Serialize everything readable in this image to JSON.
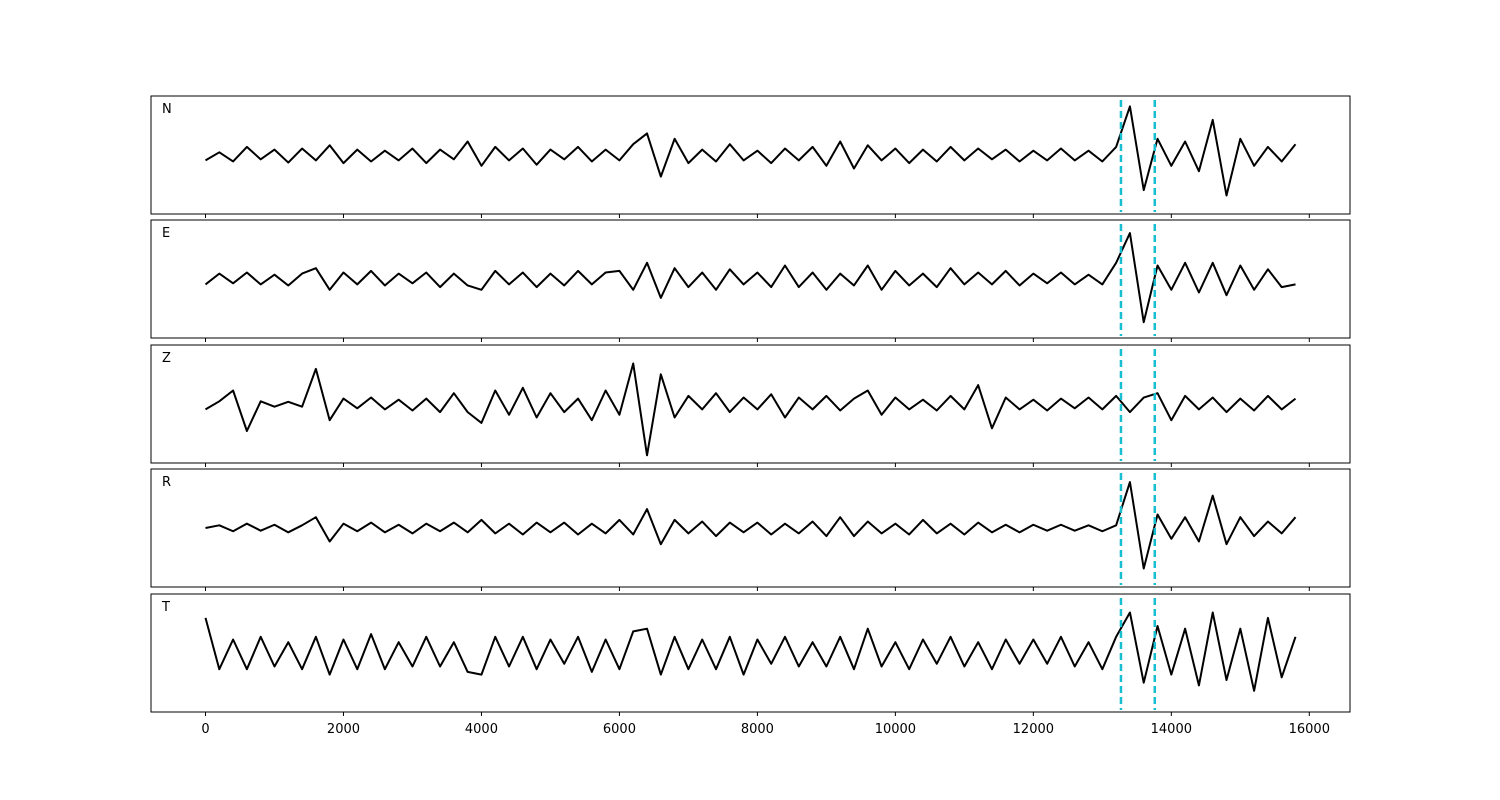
{
  "chart_data": [
    {
      "type": "line",
      "label": "N",
      "color": "#000000",
      "vline_color": "#17becf",
      "vlines": [
        13270,
        13760
      ],
      "xlim": [
        -790,
        16590
      ],
      "ylim": [
        -1,
        1
      ],
      "xticks": [
        0,
        2000,
        4000,
        6000,
        8000,
        10000,
        12000,
        14000,
        16000
      ],
      "x": [
        0,
        200,
        400,
        600,
        800,
        1000,
        1200,
        1400,
        1600,
        1800,
        2000,
        2200,
        2400,
        2600,
        2800,
        3000,
        3200,
        3400,
        3600,
        3800,
        4000,
        4200,
        4400,
        4600,
        4800,
        5000,
        5200,
        5400,
        5600,
        5800,
        6000,
        6200,
        6400,
        6600,
        6800,
        7000,
        7200,
        7400,
        7600,
        7800,
        8000,
        8200,
        8400,
        8600,
        8800,
        9000,
        9200,
        9400,
        9600,
        9800,
        10000,
        10200,
        10400,
        10600,
        10800,
        11000,
        11200,
        11400,
        11600,
        11800,
        12000,
        12200,
        12400,
        12600,
        12800,
        13000,
        13200,
        13400,
        13600,
        13800,
        14000,
        14200,
        14400,
        14600,
        14800,
        15000,
        15200,
        15400,
        15600,
        15800
      ],
      "values": [
        -0.1,
        0.05,
        -0.12,
        0.15,
        -0.08,
        0.1,
        -0.14,
        0.12,
        -0.1,
        0.18,
        -0.15,
        0.1,
        -0.12,
        0.08,
        -0.1,
        0.12,
        -0.15,
        0.1,
        -0.08,
        0.25,
        -0.2,
        0.15,
        -0.1,
        0.12,
        -0.18,
        0.1,
        -0.08,
        0.15,
        -0.12,
        0.1,
        -0.1,
        0.2,
        0.4,
        -0.4,
        0.3,
        -0.15,
        0.1,
        -0.12,
        0.2,
        -0.1,
        0.08,
        -0.15,
        0.12,
        -0.1,
        0.15,
        -0.2,
        0.25,
        -0.25,
        0.18,
        -0.1,
        0.12,
        -0.15,
        0.1,
        -0.12,
        0.15,
        -0.1,
        0.12,
        -0.08,
        0.1,
        -0.12,
        0.08,
        -0.1,
        0.12,
        -0.1,
        0.08,
        -0.12,
        0.15,
        0.9,
        -0.65,
        0.3,
        -0.2,
        0.25,
        -0.3,
        0.65,
        -0.75,
        0.3,
        -0.2,
        0.15,
        -0.12,
        0.2
      ]
    },
    {
      "type": "line",
      "label": "E",
      "color": "#000000",
      "vline_color": "#17becf",
      "vlines": [
        13270,
        13760
      ],
      "xlim": [
        -790,
        16590
      ],
      "ylim": [
        -1,
        1
      ],
      "xticks": [
        0,
        2000,
        4000,
        6000,
        8000,
        10000,
        12000,
        14000,
        16000
      ],
      "x": [
        0,
        200,
        400,
        600,
        800,
        1000,
        1200,
        1400,
        1600,
        1800,
        2000,
        2200,
        2400,
        2600,
        2800,
        3000,
        3200,
        3400,
        3600,
        3800,
        4000,
        4200,
        4400,
        4600,
        4800,
        5000,
        5200,
        5400,
        5600,
        5800,
        6000,
        6200,
        6400,
        6600,
        6800,
        7000,
        7200,
        7400,
        7600,
        7800,
        8000,
        8200,
        8400,
        8600,
        8800,
        9000,
        9200,
        9400,
        9600,
        9800,
        10000,
        10200,
        10400,
        10600,
        10800,
        11000,
        11200,
        11400,
        11600,
        11800,
        12000,
        12200,
        12400,
        12600,
        12800,
        13000,
        13200,
        13400,
        13600,
        13800,
        14000,
        14200,
        14400,
        14600,
        14800,
        15000,
        15200,
        15400,
        15600,
        15800
      ],
      "values": [
        -0.1,
        0.1,
        -0.08,
        0.12,
        -0.1,
        0.08,
        -0.12,
        0.1,
        0.2,
        -0.2,
        0.12,
        -0.1,
        0.15,
        -0.12,
        0.1,
        -0.08,
        0.12,
        -0.15,
        0.1,
        -0.12,
        -0.2,
        0.15,
        -0.1,
        0.12,
        -0.15,
        0.1,
        -0.12,
        0.15,
        -0.1,
        0.12,
        0.15,
        -0.2,
        0.3,
        -0.35,
        0.2,
        -0.15,
        0.12,
        -0.2,
        0.18,
        -0.1,
        0.12,
        -0.15,
        0.25,
        -0.15,
        0.12,
        -0.2,
        0.1,
        -0.12,
        0.25,
        -0.2,
        0.15,
        -0.12,
        0.1,
        -0.15,
        0.2,
        -0.1,
        0.12,
        -0.1,
        0.15,
        -0.12,
        0.1,
        -0.08,
        0.12,
        -0.1,
        0.08,
        -0.1,
        0.3,
        0.85,
        -0.8,
        0.25,
        -0.2,
        0.3,
        -0.25,
        0.3,
        -0.3,
        0.25,
        -0.2,
        0.18,
        -0.15,
        -0.1
      ]
    },
    {
      "type": "line",
      "label": "Z",
      "color": "#000000",
      "vline_color": "#17becf",
      "vlines": [
        13270,
        13760
      ],
      "xlim": [
        -790,
        16590
      ],
      "ylim": [
        -1,
        1
      ],
      "xticks": [
        0,
        2000,
        4000,
        6000,
        8000,
        10000,
        12000,
        14000,
        16000
      ],
      "x": [
        0,
        200,
        400,
        600,
        800,
        1000,
        1200,
        1400,
        1600,
        1800,
        2000,
        2200,
        2400,
        2600,
        2800,
        3000,
        3200,
        3400,
        3600,
        3800,
        4000,
        4200,
        4400,
        4600,
        4800,
        5000,
        5200,
        5400,
        5600,
        5800,
        6000,
        6200,
        6400,
        6600,
        6800,
        7000,
        7200,
        7400,
        7600,
        7800,
        8000,
        8200,
        8400,
        8600,
        8800,
        9000,
        9200,
        9400,
        9600,
        9800,
        10000,
        10200,
        10400,
        10600,
        10800,
        11000,
        11200,
        11400,
        11600,
        11800,
        12000,
        12200,
        12400,
        12600,
        12800,
        13000,
        13200,
        13400,
        13600,
        13800,
        14000,
        14200,
        14400,
        14600,
        14800,
        15000,
        15200,
        15400,
        15600,
        15800
      ],
      "values": [
        -0.1,
        0.05,
        0.25,
        -0.5,
        0.05,
        -0.05,
        0.04,
        -0.05,
        0.65,
        -0.3,
        0.1,
        -0.08,
        0.12,
        -0.1,
        0.08,
        -0.12,
        0.1,
        -0.15,
        0.2,
        -0.15,
        -0.35,
        0.25,
        -0.2,
        0.3,
        -0.25,
        0.2,
        -0.15,
        0.1,
        -0.3,
        0.25,
        -0.2,
        0.75,
        -0.95,
        0.55,
        -0.25,
        0.15,
        -0.1,
        0.2,
        -0.15,
        0.12,
        -0.1,
        0.18,
        -0.25,
        0.12,
        -0.1,
        0.15,
        -0.12,
        0.1,
        0.25,
        -0.2,
        0.12,
        -0.1,
        0.08,
        -0.12,
        0.15,
        -0.1,
        0.35,
        -0.45,
        0.12,
        -0.1,
        0.08,
        -0.12,
        0.1,
        -0.08,
        0.12,
        -0.1,
        0.15,
        -0.15,
        0.12,
        0.2,
        -0.3,
        0.15,
        -0.1,
        0.12,
        -0.15,
        0.1,
        -0.12,
        0.15,
        -0.1,
        0.1
      ]
    },
    {
      "type": "line",
      "label": "R",
      "color": "#000000",
      "vline_color": "#17becf",
      "vlines": [
        13270,
        13760
      ],
      "xlim": [
        -790,
        16590
      ],
      "ylim": [
        -1,
        1
      ],
      "xticks": [
        0,
        2000,
        4000,
        6000,
        8000,
        10000,
        12000,
        14000,
        16000
      ],
      "x": [
        0,
        200,
        400,
        600,
        800,
        1000,
        1200,
        1400,
        1600,
        1800,
        2000,
        2200,
        2400,
        2600,
        2800,
        3000,
        3200,
        3400,
        3600,
        3800,
        4000,
        4200,
        4400,
        4600,
        4800,
        5000,
        5200,
        5400,
        5600,
        5800,
        6000,
        6200,
        6400,
        6600,
        6800,
        7000,
        7200,
        7400,
        7600,
        7800,
        8000,
        8200,
        8400,
        8600,
        8800,
        9000,
        9200,
        9400,
        9600,
        9800,
        10000,
        10200,
        10400,
        10600,
        10800,
        11000,
        11200,
        11400,
        11600,
        11800,
        12000,
        12200,
        12400,
        12600,
        12800,
        13000,
        13200,
        13400,
        13600,
        13800,
        14000,
        14200,
        14400,
        14600,
        14800,
        15000,
        15200,
        15400,
        15600,
        15800
      ],
      "values": [
        0.0,
        0.05,
        -0.06,
        0.08,
        -0.05,
        0.06,
        -0.08,
        0.05,
        0.2,
        -0.25,
        0.08,
        -0.06,
        0.1,
        -0.08,
        0.06,
        -0.1,
        0.08,
        -0.06,
        0.1,
        -0.08,
        0.15,
        -0.1,
        0.08,
        -0.12,
        0.1,
        -0.08,
        0.1,
        -0.12,
        0.08,
        -0.1,
        0.15,
        -0.12,
        0.35,
        -0.3,
        0.15,
        -0.1,
        0.12,
        -0.15,
        0.1,
        -0.08,
        0.1,
        -0.12,
        0.08,
        -0.1,
        0.12,
        -0.15,
        0.2,
        -0.15,
        0.12,
        -0.1,
        0.08,
        -0.12,
        0.15,
        -0.1,
        0.08,
        -0.12,
        0.1,
        -0.08,
        0.06,
        -0.08,
        0.06,
        -0.05,
        0.06,
        -0.05,
        0.05,
        -0.06,
        0.05,
        0.85,
        -0.75,
        0.25,
        -0.2,
        0.2,
        -0.25,
        0.6,
        -0.3,
        0.2,
        -0.15,
        0.12,
        -0.1,
        0.2
      ]
    },
    {
      "type": "line",
      "label": "T",
      "color": "#000000",
      "vline_color": "#17becf",
      "vlines": [
        13270,
        13760
      ],
      "xlim": [
        -790,
        16590
      ],
      "ylim": [
        -1,
        1
      ],
      "xticks": [
        0,
        2000,
        4000,
        6000,
        8000,
        10000,
        12000,
        14000,
        16000
      ],
      "x": [
        0,
        200,
        400,
        600,
        800,
        1000,
        1200,
        1400,
        1600,
        1800,
        2000,
        2200,
        2400,
        2600,
        2800,
        3000,
        3200,
        3400,
        3600,
        3800,
        4000,
        4200,
        4400,
        4600,
        4800,
        5000,
        5200,
        5400,
        5600,
        5800,
        6000,
        6200,
        6400,
        6600,
        6800,
        7000,
        7200,
        7400,
        7600,
        7800,
        8000,
        8200,
        8400,
        8600,
        8800,
        9000,
        9200,
        9400,
        9600,
        9800,
        10000,
        10200,
        10400,
        10600,
        10800,
        11000,
        11200,
        11400,
        11600,
        11800,
        12000,
        12200,
        12400,
        12600,
        12800,
        13000,
        13200,
        13400,
        13600,
        13800,
        14000,
        14200,
        14400,
        14600,
        14800,
        15000,
        15200,
        15400,
        15600,
        15800
      ],
      "values": [
        0.65,
        -0.3,
        0.25,
        -0.3,
        0.3,
        -0.25,
        0.2,
        -0.3,
        0.3,
        -0.4,
        0.25,
        -0.3,
        0.35,
        -0.3,
        0.2,
        -0.25,
        0.3,
        -0.25,
        0.2,
        -0.35,
        -0.4,
        0.3,
        -0.25,
        0.3,
        -0.3,
        0.25,
        -0.2,
        0.3,
        -0.35,
        0.25,
        -0.3,
        0.4,
        0.45,
        -0.4,
        0.3,
        -0.3,
        0.25,
        -0.3,
        0.3,
        -0.4,
        0.25,
        -0.2,
        0.3,
        -0.25,
        0.2,
        -0.25,
        0.3,
        -0.3,
        0.45,
        -0.25,
        0.2,
        -0.3,
        0.25,
        -0.2,
        0.3,
        -0.25,
        0.2,
        -0.3,
        0.25,
        -0.2,
        0.25,
        -0.2,
        0.3,
        -0.25,
        0.2,
        -0.3,
        0.3,
        0.75,
        -0.55,
        0.5,
        -0.4,
        0.45,
        -0.6,
        0.75,
        -0.5,
        0.45,
        -0.7,
        0.65,
        -0.45,
        0.3
      ]
    }
  ]
}
